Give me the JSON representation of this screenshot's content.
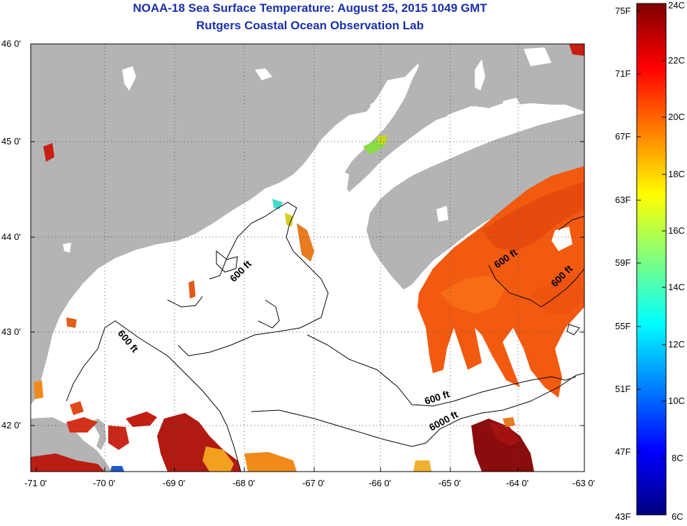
{
  "title": {
    "line1": "NOAA-18 Sea Surface Temperature:  August 25, 2015 1049 GMT",
    "line2": "Rutgers Coastal Ocean Observation Lab"
  },
  "map": {
    "lat_ticks": [
      {
        "value": 46,
        "label": "46 0'"
      },
      {
        "value": 45,
        "label": "45 0'"
      },
      {
        "value": 44,
        "label": "44 0'"
      },
      {
        "value": 43,
        "label": "43 0'"
      },
      {
        "value": 42,
        "label": "42 0'"
      }
    ],
    "lon_ticks": [
      {
        "value": -71,
        "label": "-71 0'"
      },
      {
        "value": -70,
        "label": "-70 0'"
      },
      {
        "value": -69,
        "label": "-69 0'"
      },
      {
        "value": -68,
        "label": "-68 0'"
      },
      {
        "value": -67,
        "label": "-67 0'"
      },
      {
        "value": -66,
        "label": "-66 0'"
      },
      {
        "value": -65,
        "label": "-65 0'"
      },
      {
        "value": -64,
        "label": "-64 0'"
      },
      {
        "value": -63,
        "label": "-63 0'"
      }
    ],
    "lon_range": [
      -71,
      -63
    ],
    "lat_range": [
      41.5,
      46
    ],
    "grid": true,
    "land_color": "#b4b4b4",
    "water_color": "#ffffff",
    "contour_labels": [
      {
        "text": "600 ft",
        "lon": -67.9,
        "lat": 43.6,
        "angle": -45
      },
      {
        "text": "600 ft",
        "lon": -69.8,
        "lat": 42.9,
        "angle": 50
      },
      {
        "text": "600 ft",
        "lon": -65.1,
        "lat": 42.3,
        "angle": -15
      },
      {
        "text": "6000 ft",
        "lon": -65.2,
        "lat": 42.05,
        "angle": -25
      },
      {
        "text": "600 ft",
        "lon": -64.25,
        "lat": 43.7,
        "angle": -35
      },
      {
        "text": "600 ft",
        "lon": -63.35,
        "lat": 43.55,
        "angle": -45
      }
    ]
  },
  "colorbar": {
    "colors": [
      "#00007f",
      "#0000ff",
      "#007fff",
      "#00ffff",
      "#7fff7f",
      "#ffff00",
      "#ff7f00",
      "#ff0000",
      "#7f0000"
    ],
    "f_labels": [
      "75F",
      "71F",
      "67F",
      "63F",
      "59F",
      "55F",
      "51F",
      "47F",
      "43F"
    ],
    "c_labels": [
      "24C",
      "22C",
      "20C",
      "18C",
      "16C",
      "14C",
      "12C",
      "10C",
      "8C",
      "6C"
    ],
    "c_range": [
      6,
      24
    ],
    "f_range": [
      43,
      75
    ]
  }
}
